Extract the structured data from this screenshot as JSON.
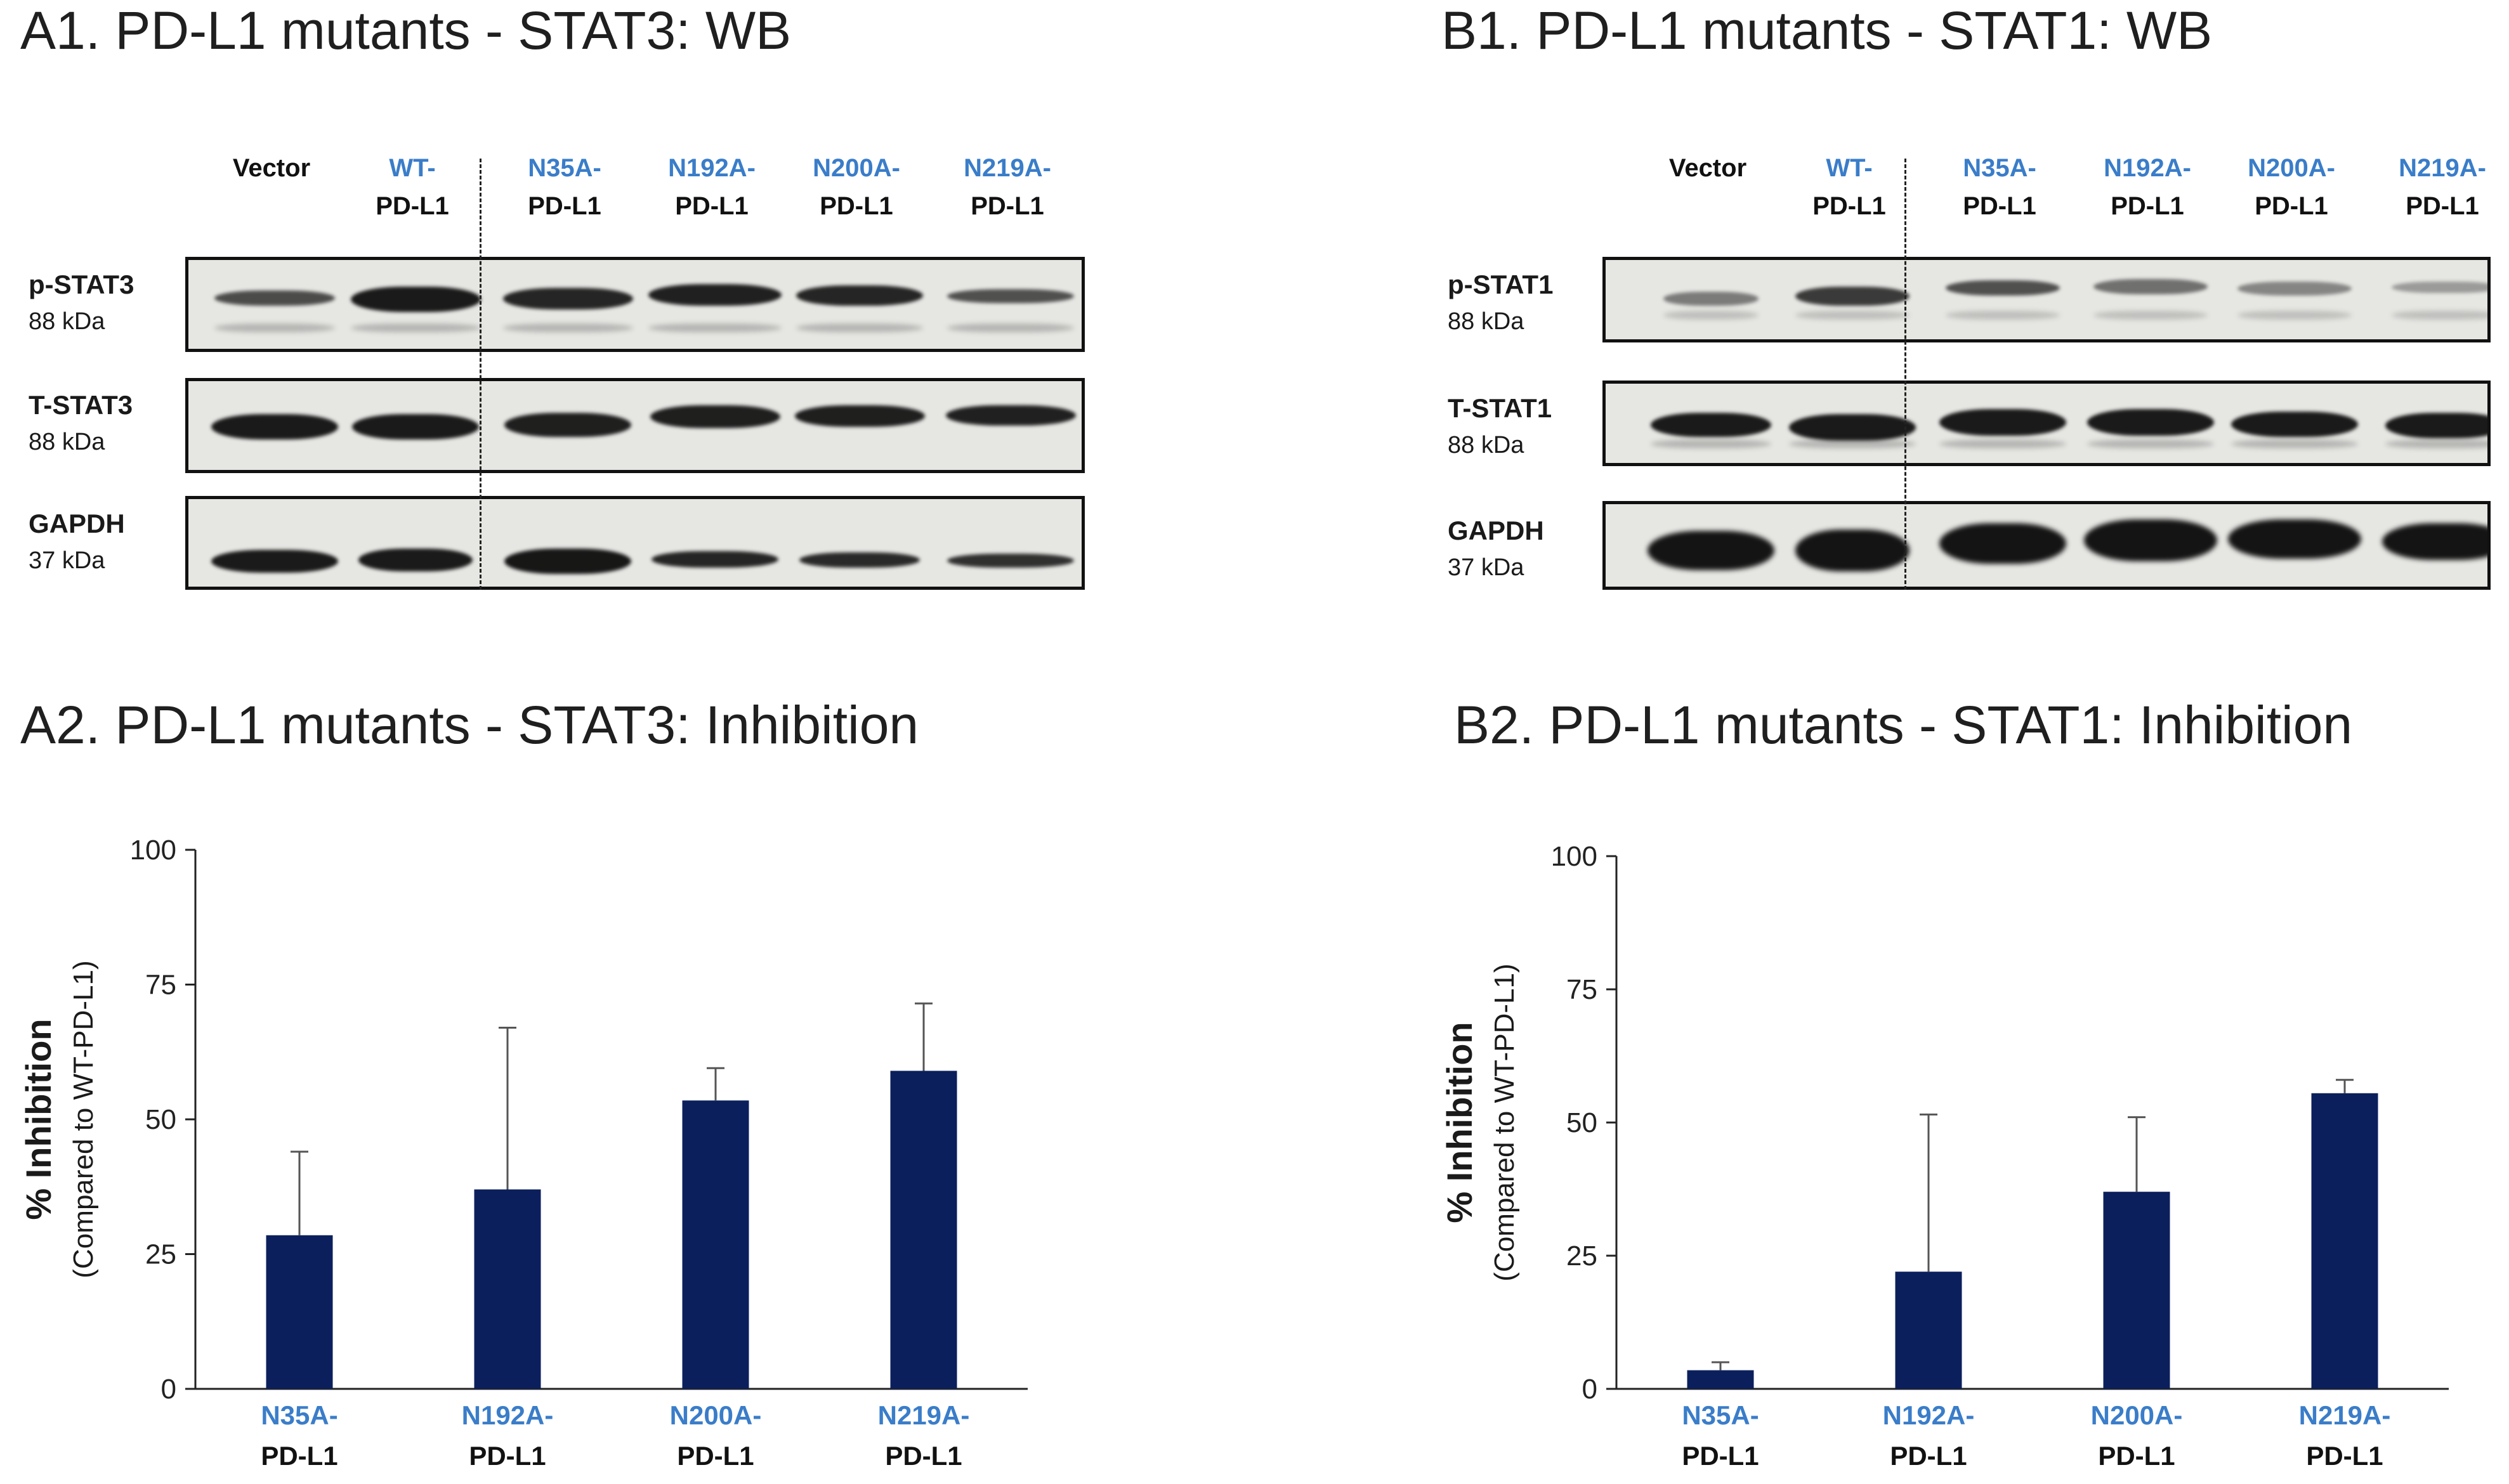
{
  "panels": {
    "a1_title": "A1. PD-L1 mutants - STAT3: WB",
    "b1_title": "B1. PD-L1 mutants - STAT1: WB",
    "a2_title": "A2. PD-L1 mutants - STAT3: Inhibition",
    "b2_title": "B2. PD-L1 mutants - STAT1: Inhibition"
  },
  "western_blot": {
    "lanes": [
      {
        "top": "Vector",
        "bottom": ""
      },
      {
        "top": "WT-",
        "bottom": "PD-L1"
      },
      {
        "top": "N35A-",
        "bottom": "PD-L1"
      },
      {
        "top": "N192A-",
        "bottom": "PD-L1"
      },
      {
        "top": "N200A-",
        "bottom": "PD-L1"
      },
      {
        "top": "N219A-",
        "bottom": "PD-L1"
      }
    ],
    "a1_rows": [
      {
        "name": "p-STAT3",
        "kda": "88 kDa"
      },
      {
        "name": "T-STAT3",
        "kda": "88 kDa"
      },
      {
        "name": "GAPDH",
        "kda": "37 kDa"
      }
    ],
    "b1_rows": [
      {
        "name": "p-STAT1",
        "kda": "88 kDa"
      },
      {
        "name": "T-STAT1",
        "kda": "88 kDa"
      },
      {
        "name": "GAPDH",
        "kda": "37 kDa"
      }
    ]
  },
  "chart_data": [
    {
      "type": "bar",
      "title": "A2. PD-L1 mutants - STAT3: Inhibition",
      "categories": [
        {
          "top": "N35A-",
          "bottom": "PD-L1"
        },
        {
          "top": "N192A-",
          "bottom": "PD-L1"
        },
        {
          "top": "N200A-",
          "bottom": "PD-L1"
        },
        {
          "top": "N219A-",
          "bottom": "PD-L1"
        }
      ],
      "values": [
        28.5,
        37,
        53.5,
        59
      ],
      "errors": [
        15.5,
        30,
        6,
        12.5
      ],
      "ylabel": "% Inhibition",
      "ylabel_sub": "(Compared to WT-PD-L1)",
      "ylim": [
        0,
        100
      ],
      "yticks": [
        0,
        25,
        50,
        75,
        100
      ],
      "bar_color": "#0b1f5c",
      "grid": false
    },
    {
      "type": "bar",
      "title": "B2. PD-L1 mutants - STAT1: Inhibition",
      "categories": [
        {
          "top": "N35A-",
          "bottom": "PD-L1"
        },
        {
          "top": "N192A-",
          "bottom": "PD-L1"
        },
        {
          "top": "N200A-",
          "bottom": "PD-L1"
        },
        {
          "top": "N219A-",
          "bottom": "PD-L1"
        }
      ],
      "values": [
        3.5,
        22,
        37,
        55.5
      ],
      "errors": [
        1.5,
        29.5,
        14,
        2.5
      ],
      "ylabel": "% Inhibition",
      "ylabel_sub": "(Compared to WT-PD-L1)",
      "ylim": [
        0,
        100
      ],
      "yticks": [
        0,
        25,
        50,
        75,
        100
      ],
      "bar_color": "#0b1f5c",
      "grid": false
    }
  ]
}
